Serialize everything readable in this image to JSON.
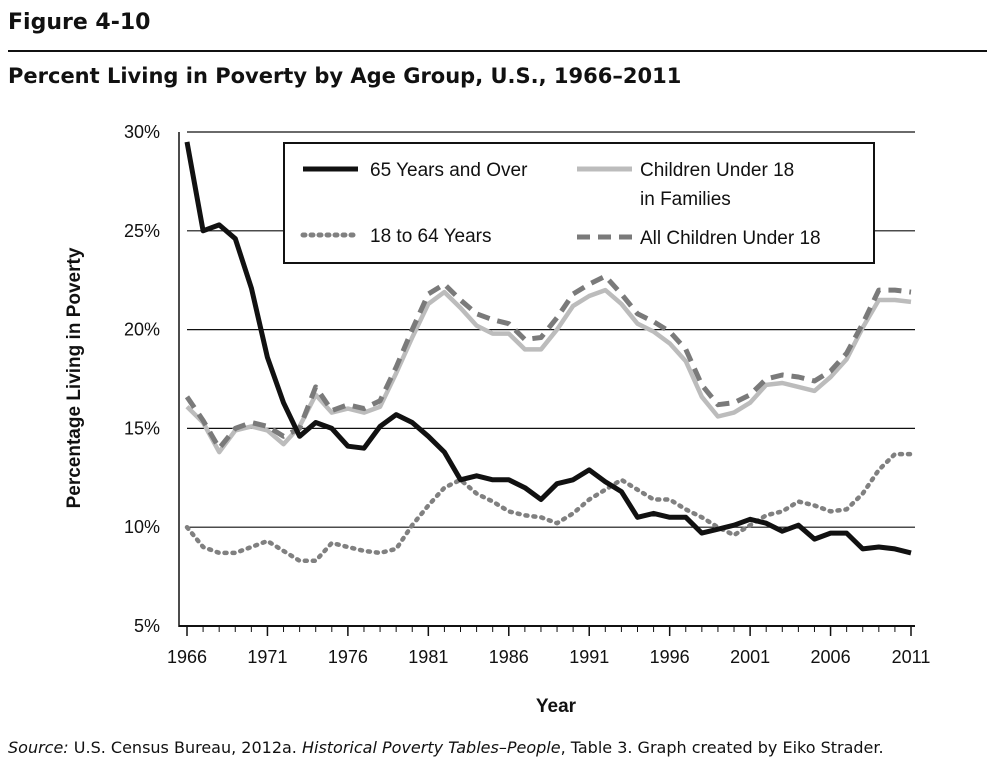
{
  "figure_label": "Figure 4-10",
  "source": {
    "prefix": "Source:",
    "text1": " U.S. Census Bureau, 2012a. ",
    "italic": "Historical Poverty Tables–People",
    "text2": ", Table 3. Graph created by Eiko Strader."
  },
  "chart_data": {
    "type": "line",
    "title": "Percent Living in Poverty by Age Group, U.S., 1966–2011",
    "xlabel": "Year",
    "ylabel": "Percentage Living in Poverty",
    "xlim": [
      1966,
      2011
    ],
    "ylim": [
      5,
      30
    ],
    "x_ticks": [
      1966,
      1971,
      1976,
      1981,
      1986,
      1991,
      1996,
      2001,
      2006,
      2011
    ],
    "y_ticks": [
      5,
      10,
      15,
      20,
      25,
      30
    ],
    "y_tick_labels": [
      "5%",
      "10%",
      "15%",
      "20%",
      "25%",
      "30%"
    ],
    "grid": "horizontal",
    "legend_position": "top-center",
    "x": [
      1966,
      1967,
      1968,
      1969,
      1970,
      1971,
      1972,
      1973,
      1974,
      1975,
      1976,
      1977,
      1978,
      1979,
      1980,
      1981,
      1982,
      1983,
      1984,
      1985,
      1986,
      1987,
      1988,
      1989,
      1990,
      1991,
      1992,
      1993,
      1994,
      1995,
      1996,
      1997,
      1998,
      1999,
      2000,
      2001,
      2002,
      2003,
      2004,
      2005,
      2006,
      2007,
      2008,
      2009,
      2010,
      2011
    ],
    "series": [
      {
        "name": "65 Years and Over",
        "style": "solid-black",
        "color": "#111111",
        "values": [
          29.5,
          25.0,
          25.3,
          24.6,
          22.1,
          18.6,
          16.3,
          14.6,
          15.3,
          15.0,
          14.1,
          14.0,
          15.1,
          15.7,
          15.3,
          14.6,
          13.8,
          12.4,
          12.6,
          12.4,
          12.4,
          12.0,
          11.4,
          12.2,
          12.4,
          12.9,
          12.3,
          11.8,
          10.5,
          10.7,
          10.5,
          10.5,
          9.7,
          9.9,
          10.1,
          10.4,
          10.2,
          9.8,
          10.1,
          9.4,
          9.7,
          9.7,
          8.9,
          9.0,
          8.9,
          8.7
        ]
      },
      {
        "name": "18 to 64 Years",
        "style": "dotted-gray",
        "color": "#808080",
        "values": [
          10.0,
          9.0,
          8.7,
          8.7,
          9.0,
          9.3,
          8.8,
          8.3,
          8.3,
          9.2,
          9.0,
          8.8,
          8.7,
          8.9,
          10.1,
          11.1,
          12.0,
          12.4,
          11.7,
          11.3,
          10.8,
          10.6,
          10.5,
          10.2,
          10.7,
          11.4,
          11.9,
          12.4,
          11.9,
          11.4,
          11.4,
          10.9,
          10.5,
          10.0,
          9.6,
          10.1,
          10.6,
          10.8,
          11.3,
          11.1,
          10.8,
          10.9,
          11.7,
          12.9,
          13.7,
          13.7
        ]
      },
      {
        "name": "Children Under 18 in Families",
        "style": "solid-lightgray",
        "color": "#bcbcbc",
        "values": [
          16.1,
          15.3,
          13.8,
          14.9,
          15.1,
          14.9,
          14.2,
          15.1,
          16.7,
          15.8,
          16.0,
          15.8,
          16.1,
          17.8,
          19.6,
          21.3,
          21.9,
          21.1,
          20.2,
          19.8,
          19.8,
          19.0,
          19.0,
          20.0,
          21.2,
          21.7,
          22.0,
          21.3,
          20.3,
          19.9,
          19.3,
          18.4,
          16.6,
          15.6,
          15.8,
          16.3,
          17.2,
          17.3,
          17.1,
          16.9,
          17.6,
          18.5,
          20.1,
          21.5,
          21.5,
          21.4
        ]
      },
      {
        "name": "All Children Under 18",
        "style": "dashed-gray",
        "color": "#7a7a7a",
        "values": [
          16.6,
          15.4,
          14.0,
          15.0,
          15.3,
          15.1,
          14.6,
          15.0,
          17.1,
          15.9,
          16.2,
          16.0,
          16.4,
          18.1,
          20.0,
          21.8,
          22.3,
          21.5,
          20.8,
          20.5,
          20.3,
          19.5,
          19.6,
          20.6,
          21.8,
          22.3,
          22.7,
          21.8,
          20.8,
          20.4,
          19.9,
          19.0,
          17.2,
          16.2,
          16.3,
          16.7,
          17.5,
          17.7,
          17.6,
          17.4,
          17.9,
          18.8,
          20.3,
          22.0,
          22.0,
          21.9
        ]
      }
    ],
    "legend_labels": [
      [
        "65 Years and Over"
      ],
      [
        "Children Under 18",
        "in Families"
      ],
      [
        "18 to 64 Years"
      ],
      [
        "All Children Under 18"
      ]
    ]
  }
}
